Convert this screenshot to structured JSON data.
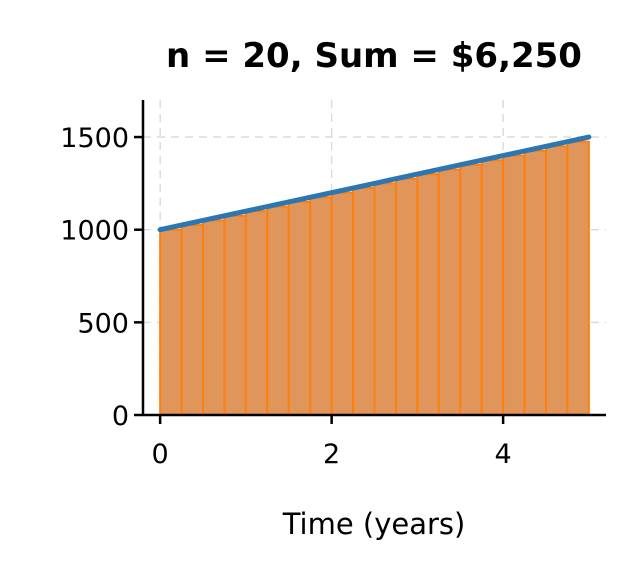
{
  "chart_data": {
    "type": "bar",
    "title": "n = 20, Sum = $6,250",
    "xlabel": "Time (years)",
    "ylabel": "",
    "xlim": [
      -0.2,
      5.2
    ],
    "ylim": [
      0,
      1700
    ],
    "xticks": [
      0,
      2,
      4
    ],
    "yticks": [
      0,
      500,
      1000,
      1500
    ],
    "grid": true,
    "bar_width": 0.25,
    "x": [
      0,
      0.25,
      0.5,
      0.75,
      1,
      1.25,
      1.5,
      1.75,
      2,
      2.25,
      2.5,
      2.75,
      3,
      3.25,
      3.5,
      3.75,
      4,
      4.25,
      4.5,
      4.75
    ],
    "values": [
      1000,
      1025,
      1050,
      1075,
      1100,
      1125,
      1150,
      1175,
      1200,
      1225,
      1250,
      1275,
      1300,
      1325,
      1350,
      1375,
      1400,
      1425,
      1450,
      1475
    ],
    "line": {
      "x": [
        0,
        5
      ],
      "y": [
        1000,
        1500
      ]
    },
    "colors": {
      "bar_fill": "#e0955a",
      "bar_edge": "#ff7f0e",
      "line": "#2a77b4",
      "grid": "#cccccc"
    }
  }
}
